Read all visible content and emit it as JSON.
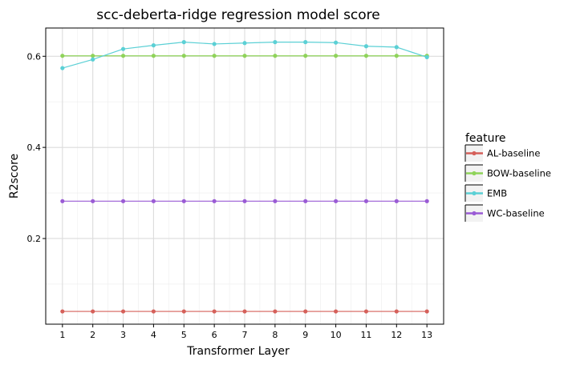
{
  "chart_data": {
    "type": "line",
    "title": "scc-deberta-ridge regression model score",
    "xlabel": "Transformer Layer",
    "ylabel": "R2score",
    "x": [
      1,
      2,
      3,
      4,
      5,
      6,
      7,
      8,
      9,
      10,
      11,
      12,
      13
    ],
    "xlim": [
      0.45,
      13.55
    ],
    "ylim": [
      0.012,
      0.662
    ],
    "yticks": [
      0.2,
      0.4,
      0.6
    ],
    "grid": true,
    "legend_title": "feature",
    "legend_position": "right",
    "series": [
      {
        "name": "AL-baseline",
        "color": "#d5605a",
        "values": [
          0.04,
          0.04,
          0.04,
          0.04,
          0.04,
          0.04,
          0.04,
          0.04,
          0.04,
          0.04,
          0.04,
          0.04,
          0.04
        ]
      },
      {
        "name": "BOW-baseline",
        "color": "#8fd35a",
        "values": [
          0.601,
          0.601,
          0.601,
          0.601,
          0.601,
          0.601,
          0.601,
          0.601,
          0.601,
          0.601,
          0.601,
          0.601,
          0.601
        ]
      },
      {
        "name": "EMB",
        "color": "#5bd0d5",
        "values": [
          0.574,
          0.593,
          0.616,
          0.624,
          0.631,
          0.627,
          0.629,
          0.631,
          0.631,
          0.63,
          0.622,
          0.62,
          0.598
        ]
      },
      {
        "name": "WC-baseline",
        "color": "#9a5bd5",
        "values": [
          0.282,
          0.282,
          0.282,
          0.282,
          0.282,
          0.282,
          0.282,
          0.282,
          0.282,
          0.282,
          0.282,
          0.282,
          0.282
        ]
      }
    ]
  }
}
